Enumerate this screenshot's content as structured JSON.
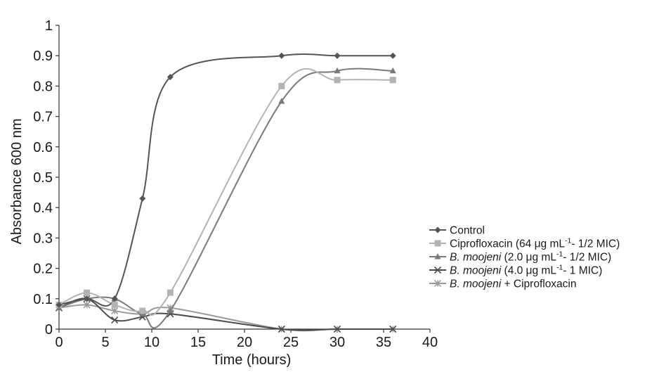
{
  "chart_data": {
    "type": "line",
    "xlabel": "Time (hours)",
    "ylabel": "Absorbance 600 nm",
    "xlim": [
      0,
      40
    ],
    "ylim": [
      0,
      1
    ],
    "x_ticks": [
      "0",
      "5",
      "10",
      "15",
      "20",
      "25",
      "30",
      "35",
      "40"
    ],
    "y_ticks": [
      "0",
      "0.1",
      "0.2",
      "0.3",
      "0.4",
      "0.5",
      "0.6",
      "0.7",
      "0.8",
      "0.9",
      "1"
    ],
    "grid": false,
    "legend_position": "right",
    "series": [
      {
        "name": "Control",
        "legend_parts": [
          {
            "t": "Control"
          }
        ],
        "color": "#555555",
        "marker": "diamond",
        "x": [
          0,
          3,
          6,
          9,
          12,
          24,
          30,
          36
        ],
        "y": [
          0.08,
          0.1,
          0.1,
          0.43,
          0.83,
          0.9,
          0.9,
          0.9
        ]
      },
      {
        "name": "Ciprofloxacin (64 μg mL-1- 1/2 MIC)",
        "legend_parts": [
          {
            "t": "Ciprofloxacin (64 μg mL"
          },
          {
            "t": "-1",
            "sup": true
          },
          {
            "t": "- 1/2 MIC)"
          }
        ],
        "color": "#b3b3b3",
        "marker": "square",
        "x": [
          0,
          3,
          6,
          9,
          12,
          24,
          30,
          36
        ],
        "y": [
          0.08,
          0.12,
          0.08,
          0.06,
          0.12,
          0.8,
          0.82,
          0.82
        ]
      },
      {
        "name": "B. moojeni (2.0 μg mL-1- 1/2 MIC)",
        "legend_parts": [
          {
            "t": "B. moojeni",
            "i": true
          },
          {
            "t": " (2.0 μg mL"
          },
          {
            "t": "-1",
            "sup": true
          },
          {
            "t": "- 1/2 MIC)"
          }
        ],
        "color": "#7a7a7a",
        "marker": "triangle",
        "x": [
          0,
          3,
          6,
          9,
          12,
          24,
          30,
          36
        ],
        "y": [
          0.07,
          0.1,
          0.1,
          0.05,
          0.06,
          0.75,
          0.85,
          0.85
        ]
      },
      {
        "name": "B. moojeni (4.0 μg mL-1- 1 MIC)",
        "legend_parts": [
          {
            "t": "B. moojeni",
            "i": true
          },
          {
            "t": " (4.0 μg mL"
          },
          {
            "t": "-1",
            "sup": true
          },
          {
            "t": "- 1 MIC)"
          }
        ],
        "color": "#4d4d4d",
        "marker": "x",
        "x": [
          0,
          3,
          6,
          9,
          12,
          24,
          30,
          36
        ],
        "y": [
          0.07,
          0.1,
          0.03,
          0.04,
          0.05,
          0.0,
          0.0,
          0.0
        ]
      },
      {
        "name": "B. moojeni + Ciprofloxacin",
        "legend_parts": [
          {
            "t": "B. moojeni",
            "i": true
          },
          {
            "t": " + Ciprofloxacin"
          }
        ],
        "color": "#999999",
        "marker": "star",
        "x": [
          0,
          3,
          6,
          9,
          12,
          24,
          30,
          36
        ],
        "y": [
          0.07,
          0.08,
          0.06,
          0.05,
          0.07,
          0.0,
          0.0,
          0.0
        ]
      }
    ]
  }
}
